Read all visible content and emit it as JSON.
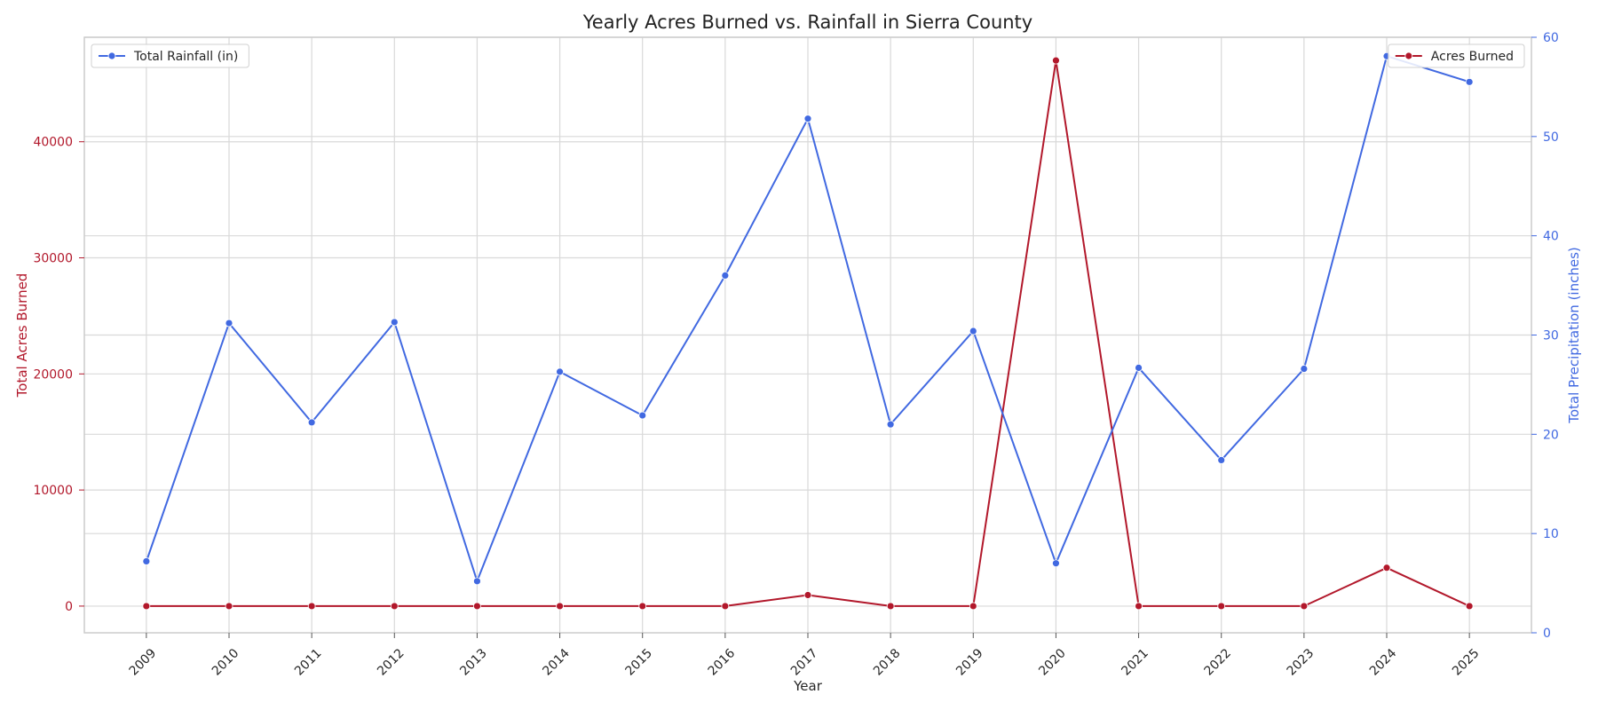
{
  "chart_data": {
    "type": "line",
    "title": "Yearly Acres Burned vs. Rainfall in Sierra County",
    "xlabel": "Year",
    "ylabel_left": "Total Acres Burned",
    "ylabel_right": "Total Precipitation (inches)",
    "x": [
      "2009",
      "2010",
      "2011",
      "2012",
      "2013",
      "2014",
      "2015",
      "2016",
      "2017",
      "2018",
      "2019",
      "2020",
      "2021",
      "2022",
      "2023",
      "2024",
      "2025"
    ],
    "y_left_ticks": [
      "0",
      "10000",
      "20000",
      "30000",
      "40000"
    ],
    "y_right_ticks": [
      "0",
      "10",
      "20",
      "30",
      "40",
      "50",
      "60"
    ],
    "ylim_left": [
      -2300,
      49000
    ],
    "ylim_right": [
      0,
      60
    ],
    "grid": true,
    "series": [
      {
        "name": "Acres Burned",
        "axis": "left",
        "color": "#b2182b",
        "values": [
          0,
          0,
          0,
          0,
          0,
          0,
          0,
          0,
          950,
          0,
          0,
          47000,
          0,
          0,
          0,
          3300,
          0
        ],
        "legend_position": "top-right"
      },
      {
        "name": "Total Rainfall (in)",
        "axis": "right",
        "color": "#4169e1",
        "values": [
          7.2,
          31.2,
          21.2,
          31.3,
          5.2,
          26.3,
          21.9,
          36.0,
          51.8,
          21.0,
          30.4,
          7.0,
          26.7,
          17.4,
          26.6,
          58.1,
          55.5
        ],
        "legend_position": "top-left"
      }
    ],
    "colors": {
      "left_axis": "#b2182b",
      "right_axis": "#4169e1",
      "grid": "#d9d9d9",
      "spine": "#cccccc"
    }
  }
}
